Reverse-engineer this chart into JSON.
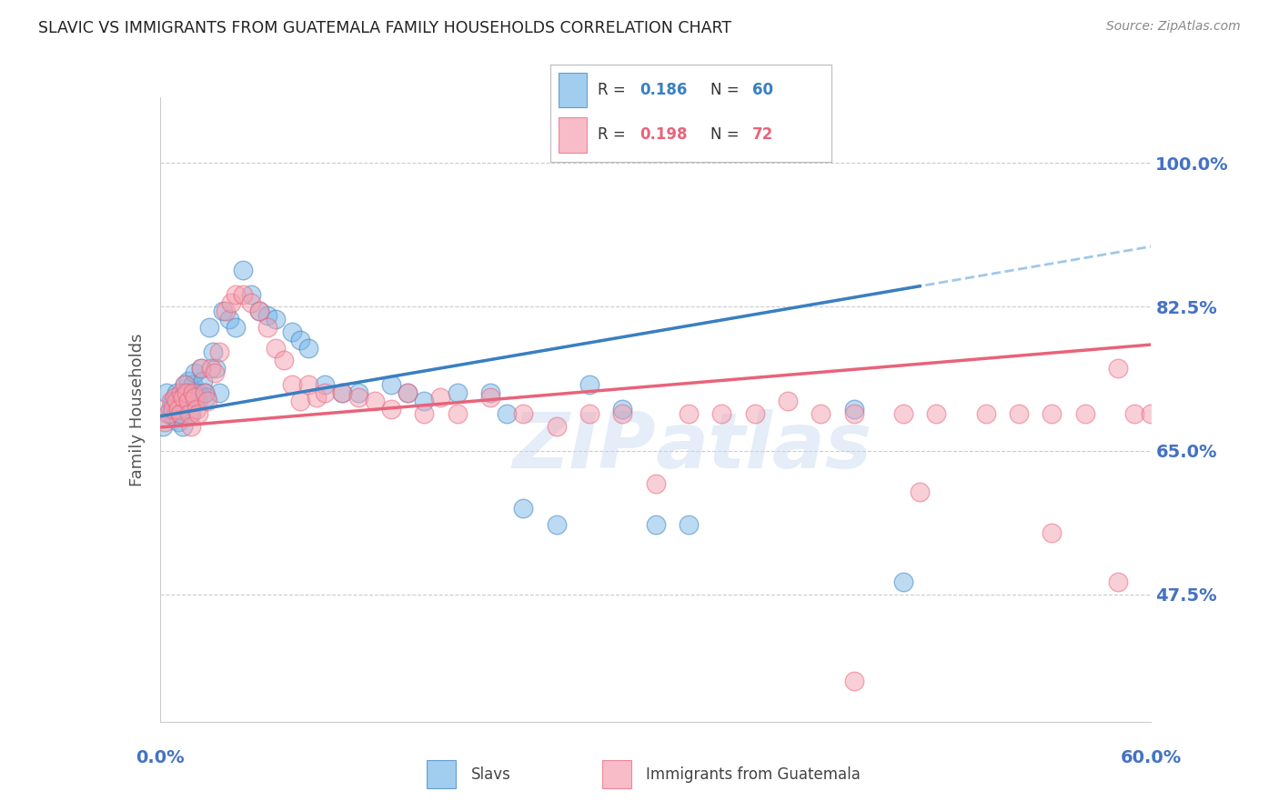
{
  "title": "SLAVIC VS IMMIGRANTS FROM GUATEMALA FAMILY HOUSEHOLDS CORRELATION CHART",
  "source": "Source: ZipAtlas.com",
  "ylabel": "Family Households",
  "ytick_labels": [
    "100.0%",
    "82.5%",
    "65.0%",
    "47.5%"
  ],
  "ytick_values": [
    1.0,
    0.825,
    0.65,
    0.475
  ],
  "xlim": [
    0.0,
    0.6
  ],
  "ylim": [
    0.32,
    1.08
  ],
  "watermark": "ZIPatlas",
  "blue_color": "#7ab8e8",
  "pink_color": "#f4a0b0",
  "blue_line_color": "#3a7fc1",
  "pink_line_color": "#e8637a",
  "blue_dashed_color": "#a0c8e8",
  "axis_label_color": "#4472c4",
  "title_color": "#222222",
  "grid_color": "#cccccc",
  "slavs_x": [
    0.002,
    0.004,
    0.006,
    0.007,
    0.008,
    0.009,
    0.01,
    0.01,
    0.011,
    0.012,
    0.013,
    0.013,
    0.014,
    0.015,
    0.015,
    0.016,
    0.017,
    0.018,
    0.019,
    0.02,
    0.021,
    0.022,
    0.023,
    0.024,
    0.025,
    0.026,
    0.027,
    0.028,
    0.03,
    0.032,
    0.034,
    0.036,
    0.038,
    0.042,
    0.046,
    0.05,
    0.055,
    0.06,
    0.065,
    0.07,
    0.08,
    0.085,
    0.09,
    0.1,
    0.11,
    0.12,
    0.14,
    0.15,
    0.16,
    0.18,
    0.2,
    0.21,
    0.22,
    0.24,
    0.26,
    0.28,
    0.3,
    0.32,
    0.42,
    0.45
  ],
  "slavs_y": [
    0.68,
    0.72,
    0.7,
    0.695,
    0.71,
    0.69,
    0.72,
    0.7,
    0.685,
    0.7,
    0.715,
    0.695,
    0.68,
    0.73,
    0.72,
    0.71,
    0.735,
    0.72,
    0.695,
    0.73,
    0.745,
    0.72,
    0.71,
    0.72,
    0.75,
    0.735,
    0.72,
    0.715,
    0.8,
    0.77,
    0.75,
    0.72,
    0.82,
    0.81,
    0.8,
    0.87,
    0.84,
    0.82,
    0.815,
    0.81,
    0.795,
    0.785,
    0.775,
    0.73,
    0.72,
    0.72,
    0.73,
    0.72,
    0.71,
    0.72,
    0.72,
    0.695,
    0.58,
    0.56,
    0.73,
    0.7,
    0.56,
    0.56,
    0.7,
    0.49
  ],
  "guatemala_x": [
    0.003,
    0.005,
    0.007,
    0.008,
    0.009,
    0.01,
    0.011,
    0.012,
    0.013,
    0.014,
    0.015,
    0.016,
    0.017,
    0.018,
    0.019,
    0.02,
    0.021,
    0.022,
    0.023,
    0.025,
    0.027,
    0.029,
    0.031,
    0.033,
    0.036,
    0.04,
    0.043,
    0.046,
    0.05,
    0.055,
    0.06,
    0.065,
    0.07,
    0.075,
    0.08,
    0.085,
    0.09,
    0.095,
    0.1,
    0.11,
    0.12,
    0.13,
    0.14,
    0.15,
    0.16,
    0.17,
    0.18,
    0.2,
    0.22,
    0.24,
    0.26,
    0.28,
    0.3,
    0.32,
    0.34,
    0.36,
    0.38,
    0.4,
    0.42,
    0.45,
    0.47,
    0.5,
    0.52,
    0.54,
    0.56,
    0.58,
    0.59,
    0.6,
    0.42,
    0.46,
    0.54,
    0.58
  ],
  "guatemala_y": [
    0.685,
    0.695,
    0.71,
    0.7,
    0.715,
    0.71,
    0.7,
    0.695,
    0.72,
    0.715,
    0.73,
    0.72,
    0.71,
    0.695,
    0.68,
    0.72,
    0.715,
    0.7,
    0.695,
    0.75,
    0.72,
    0.71,
    0.75,
    0.745,
    0.77,
    0.82,
    0.83,
    0.84,
    0.84,
    0.83,
    0.82,
    0.8,
    0.775,
    0.76,
    0.73,
    0.71,
    0.73,
    0.715,
    0.72,
    0.72,
    0.715,
    0.71,
    0.7,
    0.72,
    0.695,
    0.715,
    0.695,
    0.715,
    0.695,
    0.68,
    0.695,
    0.695,
    0.61,
    0.695,
    0.695,
    0.695,
    0.71,
    0.695,
    0.695,
    0.695,
    0.695,
    0.695,
    0.695,
    0.695,
    0.695,
    0.75,
    0.695,
    0.695,
    0.37,
    0.6,
    0.55,
    0.49
  ]
}
